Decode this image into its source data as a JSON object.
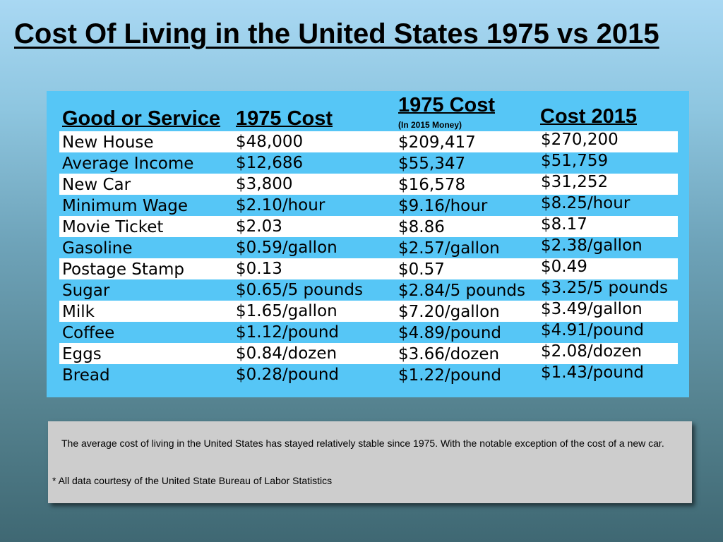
{
  "title": "Cost Of Living in the United States 1975 vs 2015",
  "headers": {
    "good": "Good or Service",
    "cost1975": "1975 Cost",
    "cost1975_adj": "1975 Cost",
    "cost1975_adj_sub": "(In 2015 Money)",
    "cost2015": "Cost 2015"
  },
  "rows": [
    {
      "good": "New House",
      "c1975": "$48,000",
      "c1975adj": "$209,417",
      "c2015": "$270,200"
    },
    {
      "good": "Average Income",
      "c1975": "$12,686",
      "c1975adj": "$55,347",
      "c2015": "$51,759"
    },
    {
      "good": "New Car",
      "c1975": "$3,800",
      "c1975adj": "$16,578",
      "c2015": "$31,252"
    },
    {
      "good": "Minimum Wage",
      "c1975": "$2.10/hour",
      "c1975adj": "$9.16/hour",
      "c2015": "$8.25/hour"
    },
    {
      "good": "Movie Ticket",
      "c1975": "$2.03",
      "c1975adj": "$8.86",
      "c2015": "$8.17"
    },
    {
      "good": "Gasoline",
      "c1975": "$0.59/gallon",
      "c1975adj": "$2.57/gallon",
      "c2015": "$2.38/gallon"
    },
    {
      "good": "Postage Stamp",
      "c1975": "$0.13",
      "c1975adj": "$0.57",
      "c2015": "$0.49"
    },
    {
      "good": "Sugar",
      "c1975": "$0.65/5 pounds",
      "c1975adj": "$2.84/5 pounds",
      "c2015": "$3.25/5 pounds"
    },
    {
      "good": "Milk",
      "c1975": "$1.65/gallon",
      "c1975adj": "$7.20/gallon",
      "c2015": "$3.49/gallon"
    },
    {
      "good": "Coffee",
      "c1975": "$1.12/pound",
      "c1975adj": "$4.89/pound",
      "c2015": "$4.91/pound"
    },
    {
      "good": "Eggs",
      "c1975": "$0.84/dozen",
      "c1975adj": "$3.66/dozen",
      "c2015": "$2.08/dozen"
    },
    {
      "good": "Bread",
      "c1975": "$0.28/pound",
      "c1975adj": "$1.22/pound",
      "c2015": "$1.43/pound"
    }
  ],
  "note": {
    "summary": "The average cost of living in the United States has stayed relatively stable since 1975. With the notable exception of the cost of a new car.",
    "source": "* All data courtesy of the United State Bureau of Labor Statistics"
  },
  "colors": {
    "panel": "#56c6f6",
    "row_white": "#ffffff",
    "note_bg": "#cdcdcd"
  }
}
